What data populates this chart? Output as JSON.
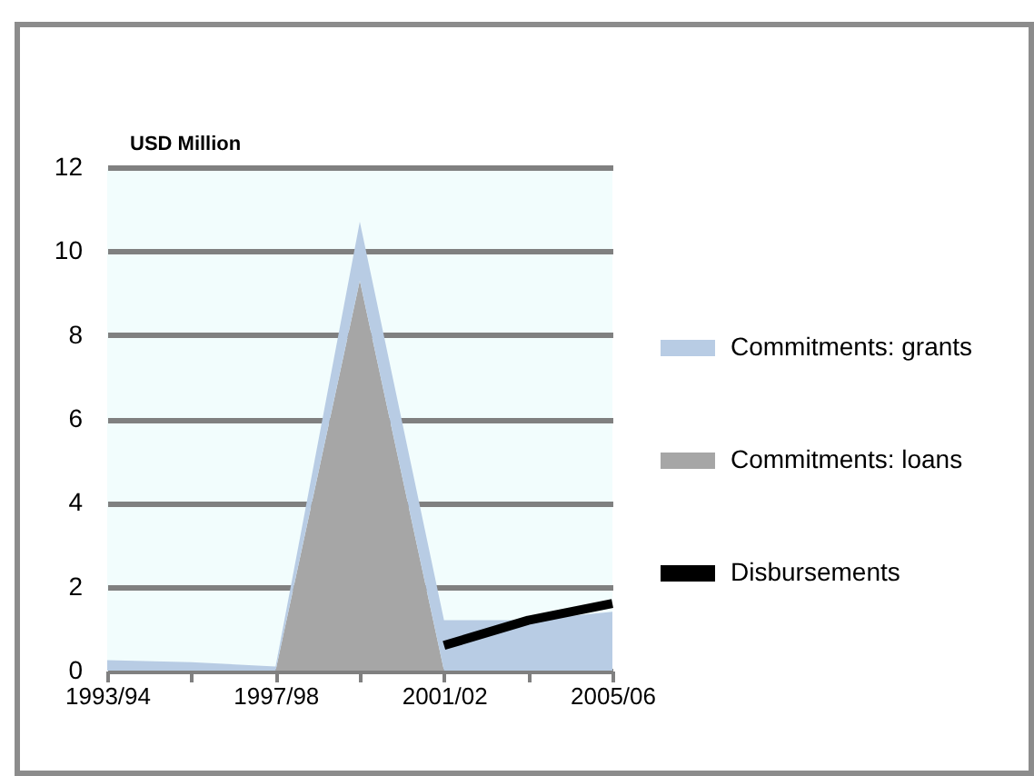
{
  "chart_data": {
    "type": "area",
    "stacked": true,
    "ylabel": "USD Million",
    "categories": [
      "1993/94",
      null,
      "1997/98",
      null,
      "2001/02",
      null,
      "2005/06"
    ],
    "series": [
      {
        "name": "Commitments: loans",
        "color": "#a6a6a6",
        "values": [
          0,
          0,
          0,
          9.3,
          0,
          0,
          0
        ]
      },
      {
        "name": "Commitments: grants",
        "color": "#b8cce4",
        "values": [
          0.25,
          0.2,
          0.1,
          1.4,
          1.2,
          1.2,
          1.4
        ]
      },
      {
        "name": "Disbursements",
        "type": "line",
        "color": "#000000",
        "values": [
          null,
          null,
          null,
          null,
          0.6,
          1.2,
          1.6
        ]
      }
    ],
    "ylim": [
      0,
      12
    ],
    "yticks": [
      0,
      2,
      4,
      6,
      8,
      10,
      12
    ],
    "grid": "y",
    "legend": "right"
  }
}
